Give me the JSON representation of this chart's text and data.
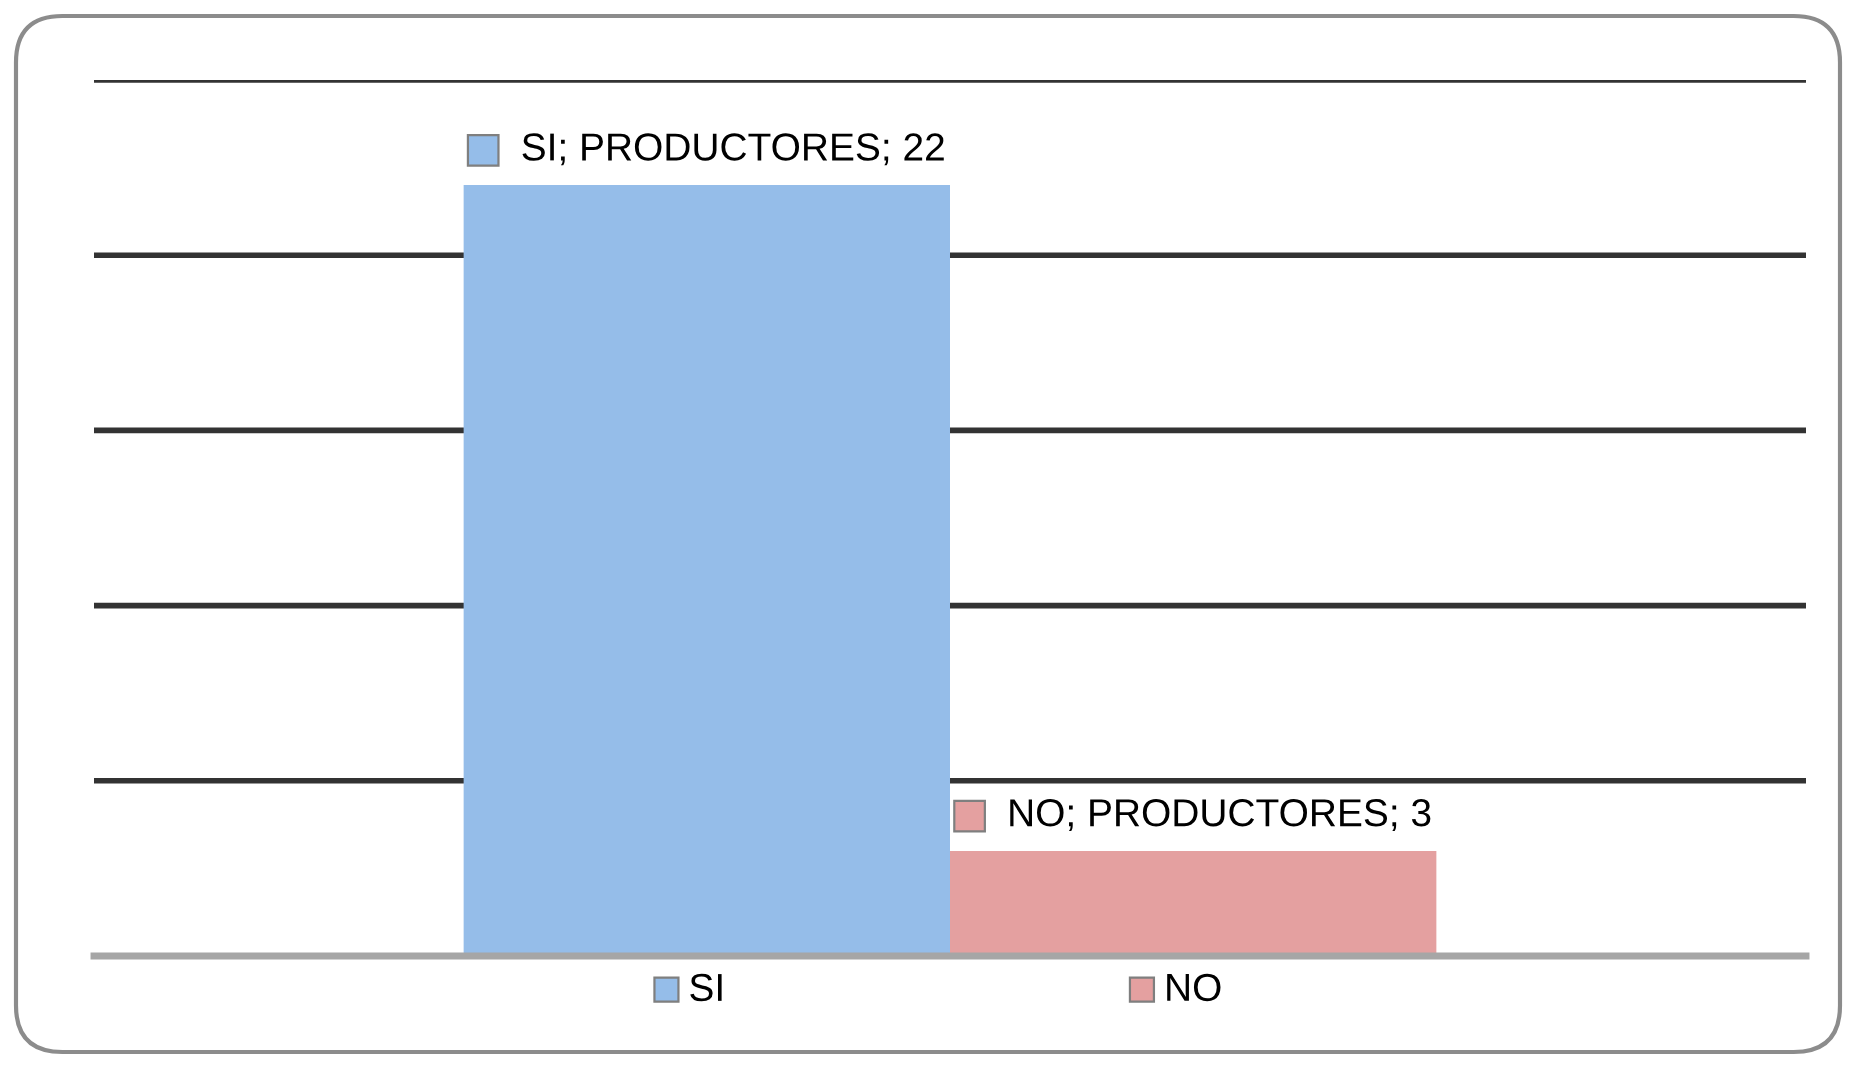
{
  "chart_data": {
    "type": "bar",
    "categories": [
      "SI",
      "NO"
    ],
    "values": [
      22,
      3
    ],
    "colors": [
      "#95bde9",
      "#e4a0a0"
    ],
    "value_labels": [
      "SI; PRODUCTORES; 22",
      "NO; PRODUCTORES; 3"
    ],
    "ylim": [
      0,
      25
    ],
    "yticks": [
      {
        "value": 0,
        "label": null
      },
      {
        "value": 5,
        "label": null
      },
      {
        "value": 10,
        "label": null
      },
      {
        "value": 15,
        "label": null
      },
      {
        "value": 20,
        "label": null
      },
      {
        "value": 25,
        "label": null
      }
    ],
    "grid": "y",
    "tick_labels": "x"
  }
}
